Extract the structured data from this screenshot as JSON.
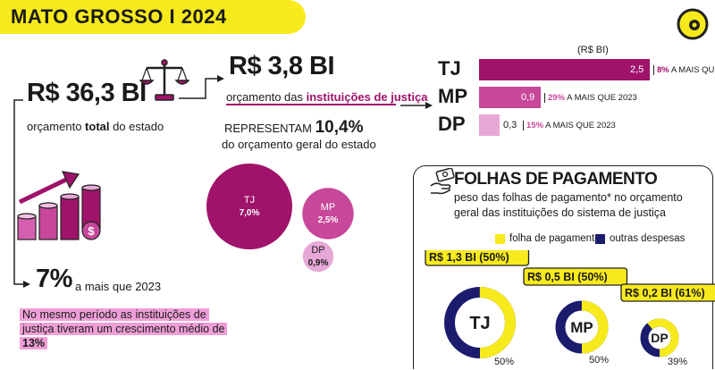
{
  "header": {
    "title": "MATO GROSSO I 2024"
  },
  "left": {
    "total_value": "R$ 36,3 BI",
    "total_caption_pre": "orçamento ",
    "total_caption_bold": "total",
    "total_caption_post": " do estado",
    "growth_value": "7%",
    "growth_caption": "a mais que 2023",
    "note_pre": "No mesmo período as instituições de justiça tiveram um crescimento médio de ",
    "note_bold": "13%"
  },
  "middle": {
    "just_value": "R$ 3,8 BI",
    "just_caption_pre": "orçamento das ",
    "just_caption_bold": "instituições de justiça",
    "rep_pre": "REPRESENTAM ",
    "rep_pct": "10,4%",
    "rep_line2": "do orçamento geral do estado"
  },
  "colors": {
    "yellow": "#f7ea1c",
    "tj": "#a0136b",
    "mp": "#c7479a",
    "dp": "#e7a8d6",
    "navy": "#1c1c6e"
  },
  "icons": {
    "scale": "scale-icon",
    "growth": "coin-growth-icon",
    "money": "money-hand-icon",
    "logo": "brand-logo-icon"
  },
  "chart_data": [
    {
      "type": "bar",
      "unit_label": "(R$ BI)",
      "categories": [
        "TJ",
        "MP",
        "DP"
      ],
      "values": [
        2.5,
        0.9,
        0.3
      ],
      "value_labels": [
        "2,5",
        "0,9",
        "0,3"
      ],
      "pct_labels": [
        "8%",
        "29%",
        "15%"
      ],
      "pct_suffix": " A MAIS QUE 2023",
      "xlim": [
        0,
        2.8
      ],
      "colors": [
        "#a0136b",
        "#c7479a",
        "#e7a8d6"
      ]
    },
    {
      "type": "bubble",
      "categories": [
        "TJ",
        "MP",
        "DP"
      ],
      "values": [
        7.0,
        2.5,
        0.9
      ],
      "value_labels": [
        "7,0%",
        "2,5%",
        "0,9%"
      ],
      "colors": [
        "#a0136b",
        "#c7479a",
        "#e7a8d6"
      ]
    },
    {
      "type": "donut",
      "title": "FOLHAS DE PAGAMENTO",
      "subtitle": "peso das folhas de pagamento* no orçamento geral das instituições do sistema de justiça",
      "legend": [
        "folha de pagamento",
        "outras despesas"
      ],
      "legend_colors": [
        "#f7ea1c",
        "#1c1c6e"
      ],
      "categories": [
        "TJ",
        "MP",
        "DP"
      ],
      "values": [
        50,
        50,
        61
      ],
      "amount_labels": [
        "R$ 1,3 BI (50%)",
        "R$ 0,5 BI (50%)",
        "R$ 0,2 BI (61%)"
      ],
      "pct_labels": [
        "50%",
        "50%",
        "39%"
      ]
    }
  ]
}
